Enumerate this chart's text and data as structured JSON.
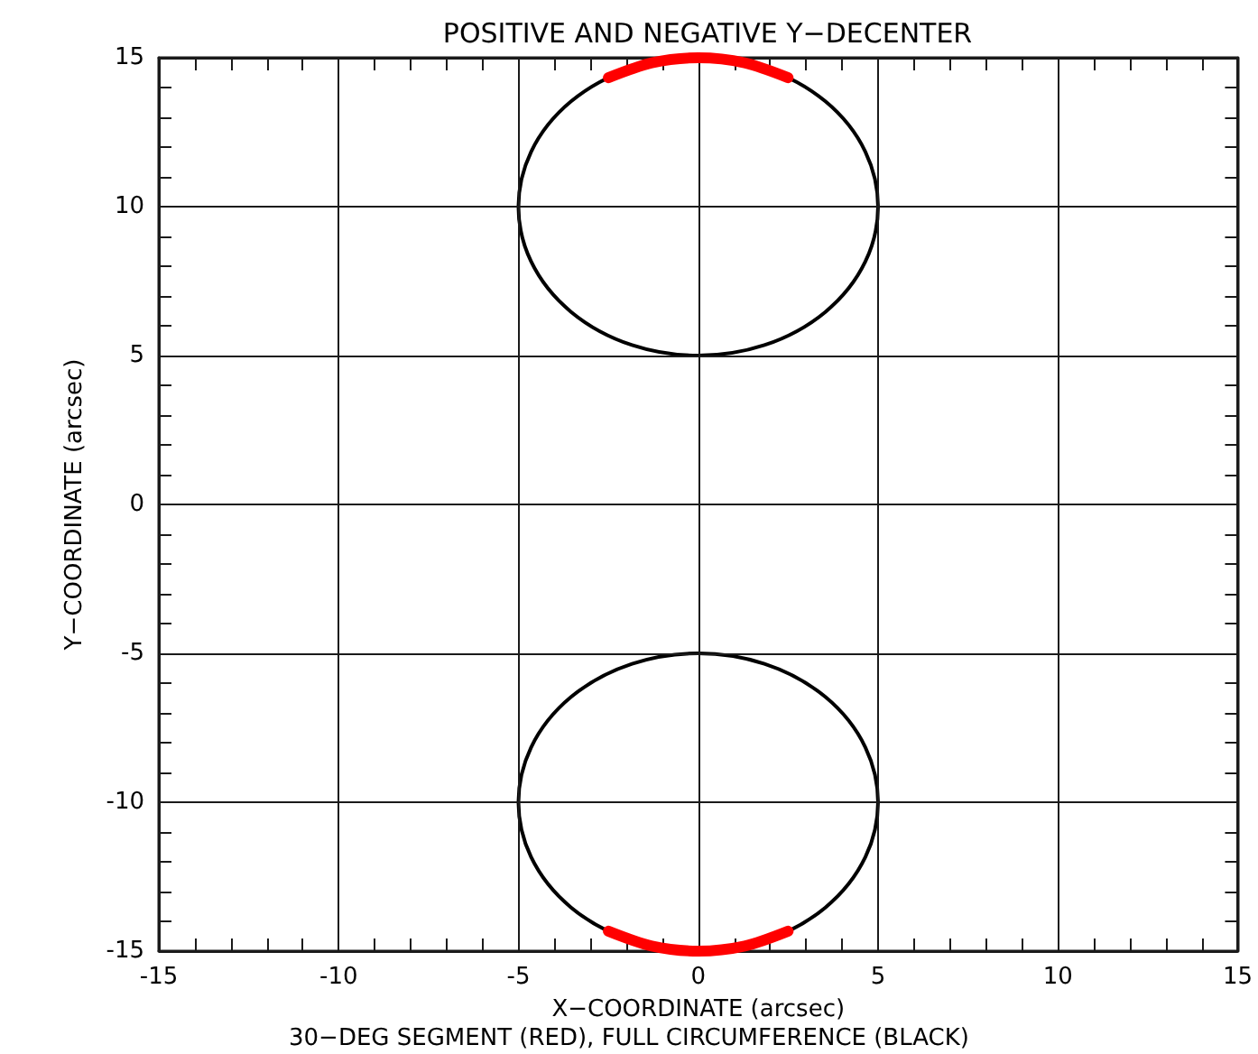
{
  "chart_data": {
    "type": "line",
    "title": "POSITIVE AND NEGATIVE Y−DECENTER",
    "xlabel": "X−COORDINATE (arcsec)",
    "ylabel": "Y−COORDINATE (arcsec)",
    "annotations": [
      "30−DEG SEGMENT (RED), FULL CIRCUMFERENCE (BLACK)"
    ],
    "xlim": [
      -15,
      15
    ],
    "ylim": [
      -15,
      15
    ],
    "xticks": [
      -15,
      {
        "value": -14,
        "label": null
      },
      {
        "value": -13,
        "label": null
      },
      {
        "value": -12,
        "label": null
      },
      {
        "value": -11,
        "label": null
      },
      -10,
      {
        "value": -9,
        "label": null
      },
      {
        "value": -8,
        "label": null
      },
      {
        "value": -7,
        "label": null
      },
      {
        "value": -6,
        "label": null
      },
      -5,
      {
        "value": -4,
        "label": null
      },
      {
        "value": -3,
        "label": null
      },
      {
        "value": -2,
        "label": null
      },
      {
        "value": -1,
        "label": null
      },
      0,
      {
        "value": 1,
        "label": null
      },
      {
        "value": 2,
        "label": null
      },
      {
        "value": 3,
        "label": null
      },
      {
        "value": 4,
        "label": null
      },
      5,
      {
        "value": 6,
        "label": null
      },
      {
        "value": 7,
        "label": null
      },
      {
        "value": 8,
        "label": null
      },
      {
        "value": 9,
        "label": null
      },
      10,
      {
        "value": 11,
        "label": null
      },
      {
        "value": 12,
        "label": null
      },
      {
        "value": 13,
        "label": null
      },
      {
        "value": 14,
        "label": null
      },
      15
    ],
    "yticks": [
      -15,
      {
        "value": -14,
        "label": null
      },
      {
        "value": -13,
        "label": null
      },
      {
        "value": -12,
        "label": null
      },
      {
        "value": -11,
        "label": null
      },
      -10,
      {
        "value": -9,
        "label": null
      },
      {
        "value": -8,
        "label": null
      },
      {
        "value": -7,
        "label": null
      },
      {
        "value": -6,
        "label": null
      },
      -5,
      {
        "value": -4,
        "label": null
      },
      {
        "value": -3,
        "label": null
      },
      {
        "value": -2,
        "label": null
      },
      {
        "value": -1,
        "label": null
      },
      0,
      {
        "value": 1,
        "label": null
      },
      {
        "value": 2,
        "label": null
      },
      {
        "value": 3,
        "label": null
      },
      {
        "value": 4,
        "label": null
      },
      5,
      {
        "value": 6,
        "label": null
      },
      {
        "value": 7,
        "label": null
      },
      {
        "value": 8,
        "label": null
      },
      {
        "value": 9,
        "label": null
      },
      10,
      {
        "value": 11,
        "label": null
      },
      {
        "value": 12,
        "label": null
      },
      {
        "value": 13,
        "label": null
      },
      {
        "value": 14,
        "label": null
      },
      15
    ],
    "grid": true,
    "marker": "none",
    "line_style": "solid",
    "series": [
      {
        "color": "#ff0000",
        "x": [
          -2.5,
          -1.29,
          0,
          1.29,
          2.5
        ],
        "values": [
          14.33,
          14.83,
          15,
          14.83,
          14.33
        ]
      },
      {
        "color": "#ff0000",
        "x": [
          -2.5,
          -1.29,
          0,
          1.29,
          2.5
        ],
        "values": [
          -14.33,
          -14.83,
          -15,
          -14.83,
          -14.33
        ]
      }
    ]
  }
}
